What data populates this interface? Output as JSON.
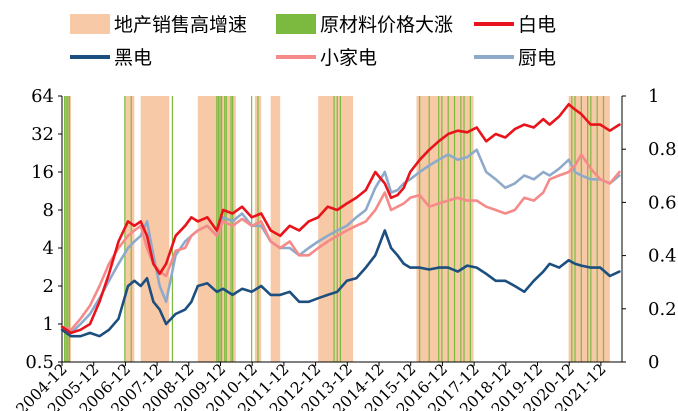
{
  "chart_data": {
    "type": "line",
    "legend": {
      "position": "top",
      "items": [
        {
          "label": "地产销售高增速",
          "kind": "band",
          "color": "#f8c9a6"
        },
        {
          "label": "原材料价格大涨",
          "kind": "band",
          "color": "#7cba3f"
        },
        {
          "label": "白电",
          "kind": "line",
          "color": "#e8131b"
        },
        {
          "label": "黑电",
          "kind": "line",
          "color": "#1c4f7f"
        },
        {
          "label": "小家电",
          "kind": "line",
          "color": "#f58a89"
        },
        {
          "label": "厨电",
          "kind": "line",
          "color": "#8eaacb"
        }
      ]
    },
    "y_left": {
      "scale": "log2",
      "ticks": [
        "0.5",
        "1",
        "2",
        "4",
        "8",
        "16",
        "32",
        "64"
      ],
      "range": [
        0.5,
        64
      ]
    },
    "y_right": {
      "ticks": [
        "0",
        "0.2",
        "0.4",
        "0.6",
        "0.8",
        "1"
      ],
      "range": [
        0,
        1
      ]
    },
    "x": {
      "range": [
        2004.917,
        2022.583
      ],
      "ticks": [
        "2004-12",
        "2005-12",
        "2006-12",
        "2007-12",
        "2008-12",
        "2009-12",
        "2010-12",
        "2011-12",
        "2012-12",
        "2013-12",
        "2014-12",
        "2015-12",
        "2016-12",
        "2017-12",
        "2018-12",
        "2019-12",
        "2020-12",
        "2021-12"
      ],
      "tick_values": [
        2004.917,
        2005.917,
        2006.917,
        2007.917,
        2008.917,
        2009.917,
        2010.917,
        2011.917,
        2012.917,
        2013.917,
        2014.917,
        2015.917,
        2016.917,
        2017.917,
        2018.917,
        2019.917,
        2020.917,
        2021.917
      ]
    },
    "bands": {
      "real_estate_high_growth": [
        [
          2005.0,
          2005.2
        ],
        [
          2006.9,
          2007.2
        ],
        [
          2007.4,
          2008.3
        ],
        [
          2009.2,
          2010.4
        ],
        [
          2011.0,
          2011.2
        ],
        [
          2011.5,
          2011.8
        ],
        [
          2013.0,
          2014.1
        ],
        [
          2016.1,
          2017.9
        ],
        [
          2020.9,
          2022.2
        ]
      ],
      "raw_material_surge": [
        2005.0,
        2005.05,
        2005.1,
        2005.15,
        2006.9,
        2007.1,
        2008.4,
        2009.8,
        2009.85,
        2009.9,
        2009.95,
        2010.05,
        2010.1,
        2010.25,
        2010.3,
        2010.9,
        2011.1,
        2013.5,
        2013.6,
        2013.7,
        2016.2,
        2016.5,
        2016.8,
        2016.9,
        2017.1,
        2017.3,
        2017.5,
        2017.6,
        2017.8,
        2021.0,
        2021.1,
        2021.3,
        2021.5,
        2021.6,
        2021.8,
        2022.0
      ]
    },
    "series": [
      {
        "name": "白电",
        "color": "#e8131b",
        "x": [
          2004.92,
          2005.2,
          2005.5,
          2005.8,
          2006.1,
          2006.4,
          2006.7,
          2007.0,
          2007.2,
          2007.4,
          2007.6,
          2007.8,
          2008.0,
          2008.2,
          2008.5,
          2008.8,
          2009.0,
          2009.2,
          2009.5,
          2009.8,
          2010.0,
          2010.3,
          2010.6,
          2010.9,
          2011.2,
          2011.5,
          2011.8,
          2012.1,
          2012.4,
          2012.7,
          2013.0,
          2013.3,
          2013.6,
          2013.9,
          2014.2,
          2014.5,
          2014.8,
          2015.1,
          2015.3,
          2015.5,
          2015.7,
          2015.9,
          2016.2,
          2016.5,
          2016.8,
          2017.1,
          2017.4,
          2017.7,
          2018.0,
          2018.3,
          2018.6,
          2018.9,
          2019.2,
          2019.5,
          2019.8,
          2020.1,
          2020.3,
          2020.6,
          2020.9,
          2021.1,
          2021.3,
          2021.6,
          2021.9,
          2022.2,
          2022.5
        ],
        "values": [
          0.95,
          0.85,
          0.9,
          1.0,
          1.5,
          2.5,
          4.5,
          6.5,
          6.0,
          6.5,
          5.0,
          3.0,
          2.5,
          3.0,
          5.0,
          6.0,
          7.0,
          6.5,
          7.0,
          5.5,
          8.0,
          7.5,
          8.5,
          7.0,
          7.5,
          5.5,
          5.0,
          6.0,
          5.5,
          6.5,
          7.0,
          8.5,
          8.0,
          9.0,
          10.0,
          11.5,
          16.0,
          13.0,
          10.0,
          10.5,
          12.0,
          16.0,
          20.0,
          24.0,
          28.0,
          32.0,
          34.0,
          33.0,
          36.0,
          28.0,
          32.0,
          30.0,
          35.0,
          38.0,
          36.0,
          42.0,
          38.0,
          44.0,
          55.0,
          50.0,
          46.0,
          38.0,
          38.0,
          34.0,
          38.0
        ]
      },
      {
        "name": "黑电",
        "color": "#1c4f7f",
        "x": [
          2004.92,
          2005.2,
          2005.5,
          2005.8,
          2006.1,
          2006.4,
          2006.7,
          2007.0,
          2007.2,
          2007.4,
          2007.6,
          2007.8,
          2008.0,
          2008.2,
          2008.5,
          2008.8,
          2009.0,
          2009.2,
          2009.5,
          2009.8,
          2010.0,
          2010.3,
          2010.6,
          2010.9,
          2011.2,
          2011.5,
          2011.8,
          2012.1,
          2012.4,
          2012.7,
          2013.0,
          2013.3,
          2013.6,
          2013.9,
          2014.2,
          2014.5,
          2014.8,
          2015.1,
          2015.3,
          2015.5,
          2015.7,
          2015.9,
          2016.2,
          2016.5,
          2016.8,
          2017.1,
          2017.4,
          2017.7,
          2018.0,
          2018.3,
          2018.6,
          2018.9,
          2019.2,
          2019.5,
          2019.8,
          2020.1,
          2020.3,
          2020.6,
          2020.9,
          2021.1,
          2021.3,
          2021.6,
          2021.9,
          2022.2,
          2022.5
        ],
        "values": [
          0.9,
          0.8,
          0.8,
          0.85,
          0.8,
          0.9,
          1.1,
          2.0,
          2.2,
          2.0,
          2.3,
          1.5,
          1.3,
          1.0,
          1.2,
          1.3,
          1.5,
          2.0,
          2.1,
          1.8,
          1.9,
          1.7,
          1.9,
          1.8,
          2.0,
          1.7,
          1.7,
          1.8,
          1.5,
          1.5,
          1.6,
          1.7,
          1.8,
          2.2,
          2.3,
          2.8,
          3.5,
          5.5,
          4.0,
          3.5,
          3.0,
          2.8,
          2.8,
          2.7,
          2.8,
          2.8,
          2.6,
          2.9,
          2.8,
          2.5,
          2.2,
          2.2,
          2.0,
          1.8,
          2.2,
          2.6,
          3.0,
          2.8,
          3.2,
          3.0,
          2.9,
          2.8,
          2.8,
          2.4,
          2.6
        ]
      },
      {
        "name": "小家电",
        "color": "#f58a89",
        "x": [
          2004.92,
          2005.2,
          2005.5,
          2005.8,
          2006.1,
          2006.4,
          2006.7,
          2007.0,
          2007.2,
          2007.4,
          2007.6,
          2007.8,
          2008.0,
          2008.2,
          2008.5,
          2008.8,
          2009.0,
          2009.2,
          2009.5,
          2009.8,
          2010.0,
          2010.3,
          2010.6,
          2010.9,
          2011.2,
          2011.5,
          2011.8,
          2012.1,
          2012.4,
          2012.7,
          2013.0,
          2013.3,
          2013.6,
          2013.9,
          2014.2,
          2014.5,
          2014.8,
          2015.1,
          2015.3,
          2015.5,
          2015.7,
          2015.9,
          2016.2,
          2016.5,
          2016.8,
          2017.1,
          2017.4,
          2017.7,
          2018.0,
          2018.3,
          2018.6,
          2018.9,
          2019.2,
          2019.5,
          2019.8,
          2020.1,
          2020.3,
          2020.6,
          2020.9,
          2021.1,
          2021.3,
          2021.6,
          2021.9,
          2022.2,
          2022.5
        ],
        "values": [
          0.95,
          0.9,
          1.1,
          1.4,
          2.0,
          3.0,
          4.0,
          5.0,
          5.5,
          6.0,
          4.0,
          3.0,
          2.6,
          2.4,
          3.8,
          4.0,
          5.0,
          5.5,
          6.0,
          5.0,
          6.5,
          6.0,
          6.8,
          6.0,
          6.5,
          4.5,
          4.0,
          4.5,
          3.5,
          3.5,
          4.0,
          4.5,
          5.0,
          5.5,
          6.0,
          6.5,
          8.0,
          11.0,
          8.0,
          8.5,
          9.0,
          10.0,
          10.5,
          8.5,
          9.0,
          9.5,
          10.0,
          9.5,
          9.5,
          8.5,
          8.0,
          7.5,
          8.0,
          10.0,
          9.5,
          11.0,
          14.0,
          15.0,
          16.0,
          18.0,
          22.0,
          17.0,
          14.0,
          13.0,
          16.0
        ]
      },
      {
        "name": "厨电",
        "color": "#8eaacb",
        "x": [
          2004.92,
          2005.2,
          2005.5,
          2005.8,
          2006.1,
          2006.4,
          2006.7,
          2007.0,
          2007.2,
          2007.4,
          2007.6,
          2007.8,
          2008.0,
          2008.2,
          2008.5,
          2008.8,
          2009.0,
          2009.2,
          2009.5,
          2009.8,
          2010.0,
          2010.3,
          2010.6,
          2010.9,
          2011.2,
          2011.5,
          2011.8,
          2012.1,
          2012.4,
          2012.7,
          2013.0,
          2013.3,
          2013.6,
          2013.9,
          2014.2,
          2014.5,
          2014.8,
          2015.1,
          2015.3,
          2015.5,
          2015.7,
          2015.9,
          2016.2,
          2016.5,
          2016.8,
          2017.1,
          2017.4,
          2017.7,
          2018.0,
          2018.3,
          2018.6,
          2018.9,
          2019.2,
          2019.5,
          2019.8,
          2020.1,
          2020.3,
          2020.6,
          2020.9,
          2021.1,
          2021.3,
          2021.6,
          2021.9,
          2022.2,
          2022.5
        ],
        "values": [
          0.9,
          0.85,
          1.0,
          1.2,
          1.6,
          2.2,
          3.0,
          4.0,
          4.5,
          5.0,
          6.5,
          3.5,
          2.0,
          1.5,
          3.5,
          4.5,
          5.0,
          5.5,
          6.0,
          5.0,
          7.0,
          6.5,
          7.5,
          6.0,
          6.0,
          4.5,
          4.0,
          4.0,
          3.5,
          4.0,
          4.5,
          5.0,
          5.5,
          6.0,
          7.0,
          8.0,
          12.0,
          16.0,
          11.0,
          11.5,
          13.0,
          14.0,
          16.0,
          18.0,
          20.0,
          22.0,
          20.0,
          21.0,
          24.0,
          16.0,
          14.0,
          12.0,
          13.0,
          15.0,
          14.0,
          16.0,
          15.0,
          17.0,
          20.0,
          16.0,
          15.0,
          14.0,
          14.0,
          13.0,
          15.0
        ]
      }
    ]
  }
}
